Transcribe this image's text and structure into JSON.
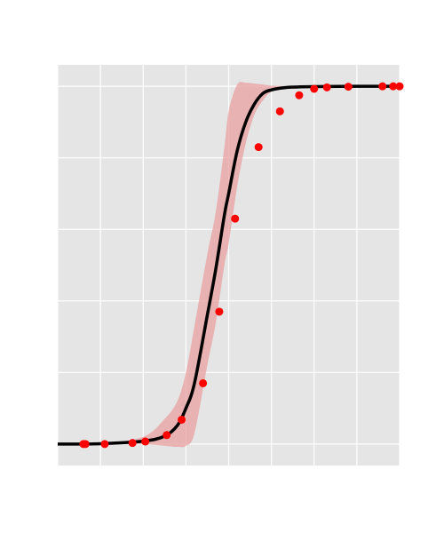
{
  "chart_data": {
    "type": "line",
    "title": "",
    "xlabel": "",
    "ylabel": "",
    "xlim": [
      0,
      8
    ],
    "ylim": [
      -0.06,
      1.06
    ],
    "grid": true,
    "legend": "none",
    "x_gridlines": [
      0,
      1,
      2,
      3,
      4,
      5,
      6,
      7,
      8
    ],
    "y_gridlines": [
      0,
      0.2,
      0.4,
      0.6,
      0.8,
      1.0
    ],
    "colors": {
      "background": "#e5e5e5",
      "grid": "#ffffff",
      "fit_line": "#000000",
      "points": "#ff0000",
      "band": "#e8a0a0"
    },
    "fit_curve": {
      "x": [
        0,
        1,
        2,
        2.5,
        2.8,
        3.0,
        3.2,
        3.5,
        3.7,
        3.9,
        4.0,
        4.2,
        4.4,
        4.6,
        4.8,
        5.0,
        5.3,
        5.6,
        6.0,
        7.0,
        8.0
      ],
      "y": [
        0.0,
        0.001,
        0.008,
        0.022,
        0.052,
        0.1,
        0.17,
        0.36,
        0.49,
        0.64,
        0.7,
        0.82,
        0.9,
        0.95,
        0.98,
        0.99,
        0.996,
        0.998,
        0.999,
        1.0,
        1.0
      ]
    },
    "band": {
      "x": [
        0,
        1,
        2,
        2.5,
        2.8,
        3.0,
        3.2,
        3.5,
        3.7,
        3.9,
        4.0,
        4.2,
        4.4,
        4.6,
        4.8,
        5.0,
        5.3,
        5.6,
        6.0,
        7.0,
        8.0
      ],
      "lower": [
        0.0,
        0.0,
        0.0,
        -0.005,
        -0.008,
        -0.005,
        0.03,
        0.22,
        0.34,
        0.5,
        0.56,
        0.72,
        0.84,
        0.92,
        0.96,
        0.985,
        0.993,
        0.996,
        0.998,
        1.0,
        1.0
      ],
      "upper": [
        0.0,
        0.002,
        0.02,
        0.07,
        0.12,
        0.2,
        0.33,
        0.53,
        0.65,
        0.83,
        0.93,
        1.005,
        1.01,
        1.008,
        1.005,
        1.002,
        1.001,
        1.0,
        1.0,
        1.0,
        1.0
      ]
    },
    "points": {
      "x": [
        0.6,
        0.65,
        1.1,
        1.75,
        2.05,
        2.55,
        2.9,
        3.4,
        3.78,
        4.15,
        4.7,
        5.2,
        5.65,
        6.0,
        6.3,
        6.8,
        7.6,
        7.85,
        8.0
      ],
      "y": [
        0.0,
        0.0,
        0.0,
        0.003,
        0.007,
        0.025,
        0.068,
        0.17,
        0.37,
        0.63,
        0.83,
        0.93,
        0.975,
        0.993,
        0.997,
        0.999,
        1.0,
        1.0,
        1.0
      ]
    }
  }
}
